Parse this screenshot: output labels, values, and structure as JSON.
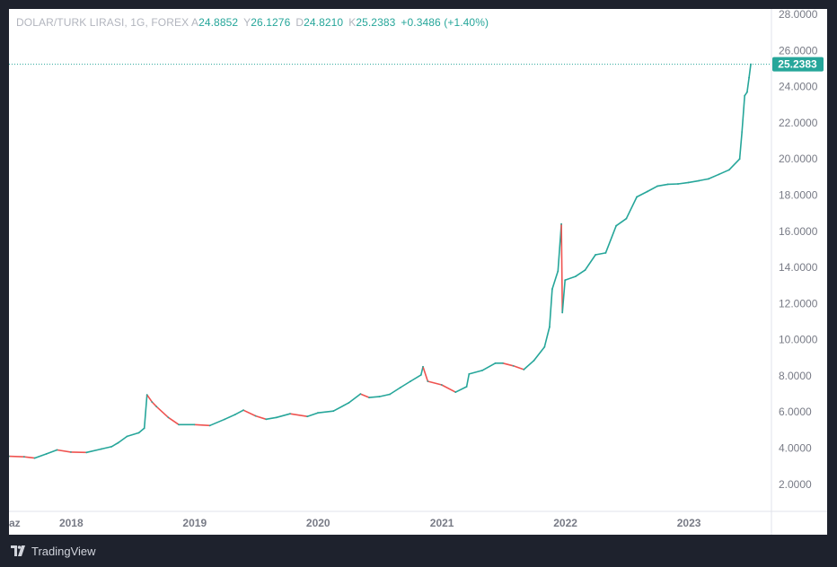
{
  "legend": {
    "symbol": "DOLAR/TURK LIRASI, 1G, FOREX",
    "open_label": "A",
    "open": "24.8852",
    "high_label": "Y",
    "high": "26.1276",
    "low_label": "D",
    "low": "24.8210",
    "close_label": "K",
    "close": "25.2383",
    "change": "+0.3486 (+1.40%)"
  },
  "price_tag": "25.2383",
  "branding": "TradingView",
  "colors": {
    "up": "#26a69a",
    "down": "#ef5350",
    "background": "#1e222d",
    "panel": "#ffffff",
    "axis_text": "#787b86"
  },
  "chart_data": {
    "type": "line",
    "title": "DOLAR/TURK LIRASI, 1G, FOREX",
    "xlabel": "",
    "ylabel": "",
    "y_ticks": [
      "2.0000",
      "4.0000",
      "6.0000",
      "8.0000",
      "10.0000",
      "12.0000",
      "14.0000",
      "16.0000",
      "18.0000",
      "20.0000",
      "22.0000",
      "24.0000",
      "26.0000",
      "28.0000"
    ],
    "x_ticks": [
      "2017-07",
      "2018",
      "2019",
      "2020",
      "2021",
      "2022",
      "2023"
    ],
    "x_tick_labels": [
      "az",
      "2018",
      "2019",
      "2020",
      "2021",
      "2022",
      "2023"
    ],
    "ylim": [
      0.5,
      28.3
    ],
    "xlim": [
      "2017-07-01",
      "2023-09-02"
    ],
    "last_price": 25.2383,
    "grid": false,
    "series": [
      {
        "values": [
          [
            "2017-07-01",
            3.55
          ],
          [
            "2017-08-15",
            3.52
          ],
          [
            "2017-09-15",
            3.45
          ],
          [
            "2017-10-20",
            3.68
          ],
          [
            "2017-11-20",
            3.9
          ],
          [
            "2017-12-31",
            3.78
          ],
          [
            "2018-02-15",
            3.76
          ],
          [
            "2018-03-31",
            3.95
          ],
          [
            "2018-04-30",
            4.08
          ],
          [
            "2018-05-20",
            4.3
          ],
          [
            "2018-06-15",
            4.65
          ],
          [
            "2018-07-20",
            4.85
          ],
          [
            "2018-08-05",
            5.1
          ],
          [
            "2018-08-13",
            6.95
          ],
          [
            "2018-08-28",
            6.55
          ],
          [
            "2018-09-10",
            6.3
          ],
          [
            "2018-10-15",
            5.7
          ],
          [
            "2018-11-15",
            5.3
          ],
          [
            "2018-12-31",
            5.3
          ],
          [
            "2019-02-15",
            5.25
          ],
          [
            "2019-03-31",
            5.6
          ],
          [
            "2019-04-30",
            5.85
          ],
          [
            "2019-05-25",
            6.1
          ],
          [
            "2019-06-30",
            5.78
          ],
          [
            "2019-07-31",
            5.6
          ],
          [
            "2019-08-31",
            5.7
          ],
          [
            "2019-10-10",
            5.9
          ],
          [
            "2019-11-30",
            5.75
          ],
          [
            "2019-12-31",
            5.95
          ],
          [
            "2020-02-15",
            6.05
          ],
          [
            "2020-03-31",
            6.5
          ],
          [
            "2020-05-05",
            7.0
          ],
          [
            "2020-05-31",
            6.8
          ],
          [
            "2020-06-30",
            6.85
          ],
          [
            "2020-07-31",
            6.98
          ],
          [
            "2020-08-31",
            7.35
          ],
          [
            "2020-09-30",
            7.7
          ],
          [
            "2020-10-31",
            8.05
          ],
          [
            "2020-11-06",
            8.5
          ],
          [
            "2020-11-20",
            7.7
          ],
          [
            "2020-12-31",
            7.5
          ],
          [
            "2021-02-10",
            7.1
          ],
          [
            "2021-03-15",
            7.4
          ],
          [
            "2021-03-22",
            8.1
          ],
          [
            "2021-04-30",
            8.3
          ],
          [
            "2021-06-08",
            8.7
          ],
          [
            "2021-06-30",
            8.7
          ],
          [
            "2021-07-31",
            8.55
          ],
          [
            "2021-08-31",
            8.35
          ],
          [
            "2021-09-30",
            8.85
          ],
          [
            "2021-10-31",
            9.6
          ],
          [
            "2021-11-15",
            10.7
          ],
          [
            "2021-11-23",
            12.8
          ],
          [
            "2021-12-10",
            13.8
          ],
          [
            "2021-12-20",
            16.4
          ],
          [
            "2021-12-23",
            11.5
          ],
          [
            "2021-12-31",
            13.3
          ],
          [
            "2022-01-31",
            13.5
          ],
          [
            "2022-02-28",
            13.85
          ],
          [
            "2022-03-31",
            14.7
          ],
          [
            "2022-04-30",
            14.8
          ],
          [
            "2022-05-31",
            16.3
          ],
          [
            "2022-06-30",
            16.7
          ],
          [
            "2022-07-31",
            17.9
          ],
          [
            "2022-08-31",
            18.2
          ],
          [
            "2022-09-30",
            18.5
          ],
          [
            "2022-10-31",
            18.6
          ],
          [
            "2022-11-30",
            18.62
          ],
          [
            "2022-12-31",
            18.7
          ],
          [
            "2023-01-31",
            18.8
          ],
          [
            "2023-02-28",
            18.9
          ],
          [
            "2023-03-31",
            19.15
          ],
          [
            "2023-04-30",
            19.4
          ],
          [
            "2023-05-31",
            20.0
          ],
          [
            "2023-06-07",
            21.5
          ],
          [
            "2023-06-15",
            23.5
          ],
          [
            "2023-06-22",
            23.7
          ],
          [
            "2023-06-28",
            24.5
          ],
          [
            "2023-07-03",
            25.24
          ]
        ]
      }
    ]
  }
}
